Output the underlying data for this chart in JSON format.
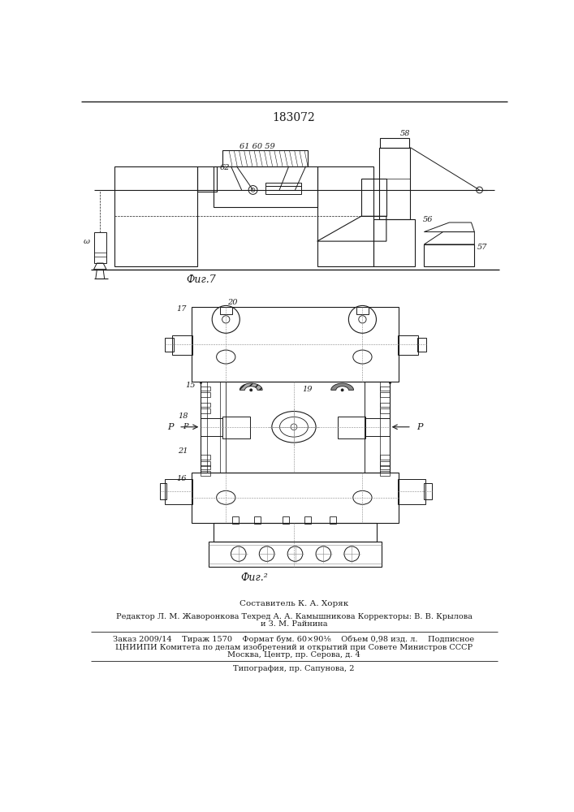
{
  "title_number": "183072",
  "fig1_caption": "Фиг.7",
  "fig2_caption": "Фиг.²",
  "author_line": "Составитель К. А. Хоряк",
  "editor_line": "Редактор Л. М. Жаворонкова Техред А. А. Камышникова Корректоры: В. В. Крылова",
  "editor_line2": "и З. М. Райнина",
  "order_line": "Заказ 2009/14    Тираж 1570    Формат бум. 60×90¹⁄₈    Объем 0,98 изд. л.    Подписное",
  "cniip_line": "ЦНИИПИ Комитета по делам изобретений и открытий при Совете Министров СССР",
  "address_line": "Москва, Центр, пр. Серова, д. 4",
  "print_line": "Типография, пр. Сапунова, 2",
  "bg_color": "#ffffff",
  "line_color": "#1a1a1a"
}
